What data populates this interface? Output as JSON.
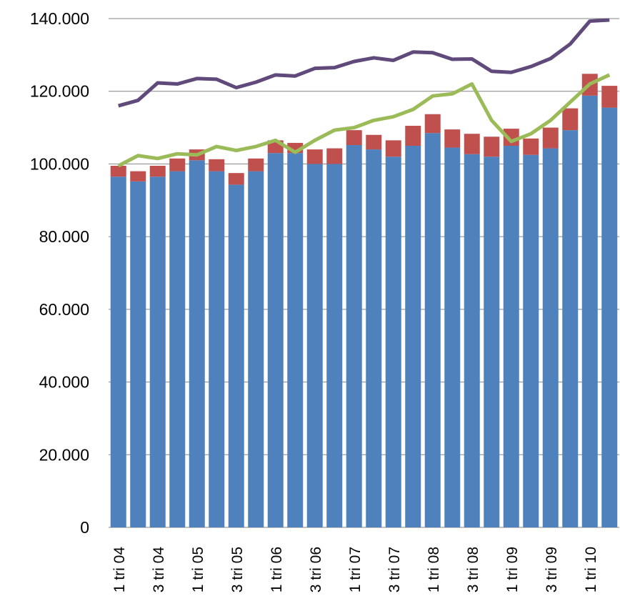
{
  "chart_data": {
    "type": "bar",
    "stacked": true,
    "categories": [
      "1 tri 04",
      null,
      "3 tri 04",
      null,
      "1 tri 05",
      null,
      "3 tri 05",
      null,
      "1 tri 06",
      null,
      "3 tri 06",
      null,
      "1 tri 07",
      null,
      "3 tri 07",
      null,
      "1 tri 08",
      null,
      "3 tri 08",
      null,
      "1 tri 09",
      null,
      "3 tri 09",
      null,
      "1 tri 10",
      null
    ],
    "series": [
      {
        "type": "bar",
        "color": "#4f81bd",
        "values": [
          96500,
          95200,
          96500,
          98000,
          101000,
          98000,
          94300,
          98000,
          103000,
          103000,
          100000,
          100000,
          105200,
          104000,
          102000,
          105000,
          108500,
          104500,
          102700,
          102000,
          105000,
          102500,
          104300,
          109300,
          118800,
          115500
        ]
      },
      {
        "type": "bar",
        "color": "#c0504d",
        "values": [
          3000,
          2800,
          3000,
          3500,
          3000,
          3300,
          3200,
          3500,
          3500,
          2800,
          4000,
          4300,
          4100,
          4000,
          4500,
          5500,
          5200,
          5000,
          5600,
          5500,
          4700,
          4500,
          5700,
          6000,
          6000,
          6000
        ]
      },
      {
        "type": "line",
        "color": "#604a7b",
        "values": [
          116000,
          117500,
          122300,
          122000,
          123500,
          123300,
          121000,
          122500,
          124500,
          124200,
          126300,
          126500,
          128200,
          129200,
          128500,
          130800,
          130600,
          128800,
          128900,
          125500,
          125200,
          126800,
          129000,
          133000,
          139300,
          139600
        ]
      },
      {
        "type": "line",
        "color": "#9bbb59",
        "values": [
          99500,
          102300,
          101500,
          102800,
          102500,
          104800,
          103700,
          104800,
          106500,
          103200,
          106500,
          109300,
          110000,
          112000,
          113000,
          115000,
          118700,
          119300,
          122000,
          112000,
          106200,
          108300,
          112000,
          117000,
          122000,
          124500
        ]
      }
    ],
    "ylim": [
      0,
      140000
    ],
    "yticks": [
      0,
      {
        "value": 20000,
        "label": "20.000"
      },
      {
        "value": 40000,
        "label": "40.000"
      },
      {
        "value": 60000,
        "label": "60.000"
      },
      {
        "value": 80000,
        "label": "80.000"
      },
      {
        "value": 100000,
        "label": "100.000"
      },
      {
        "value": 120000,
        "label": "120.000"
      },
      {
        "value": 140000,
        "label": "140.000"
      }
    ],
    "grid": true
  }
}
